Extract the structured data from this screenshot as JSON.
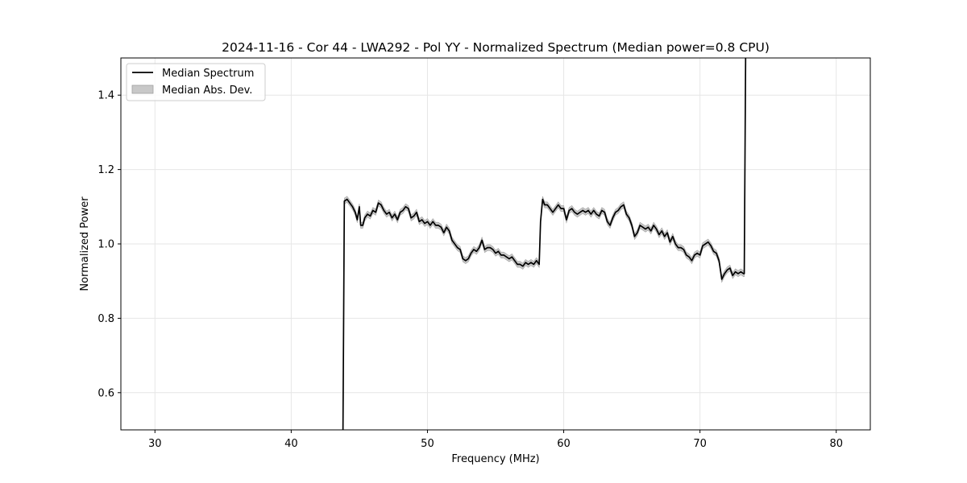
{
  "chart_data": {
    "type": "line",
    "title": "2024-11-16 - Cor 44 - LWA292 - Pol YY - Normalized Spectrum (Median power=0.8 CPU)",
    "xlabel": "Frequency (MHz)",
    "ylabel": "Normalized Power",
    "xlim": [
      27.5,
      82.5
    ],
    "ylim": [
      0.5,
      1.5
    ],
    "xticks": [
      30,
      40,
      50,
      60,
      70,
      80
    ],
    "yticks": [
      0.6,
      0.8,
      1.0,
      1.2,
      1.4
    ],
    "xtick_labels": [
      "30",
      "40",
      "50",
      "60",
      "70",
      "80"
    ],
    "ytick_labels": [
      "0.6",
      "0.8",
      "1.0",
      "1.2",
      "1.4"
    ],
    "grid": true,
    "legend_position": "top-left",
    "legend": [
      "Median Spectrum",
      "Median Abs. Dev."
    ],
    "colors": {
      "line": "#000000",
      "band": "#c8c8c8",
      "band_edge": "#a0a0a0",
      "grid": "#e6e6e6"
    },
    "series": [
      {
        "name": "Median Spectrum",
        "band_halfwidth": 0.008,
        "x": [
          43.8,
          43.9,
          44.1,
          44.3,
          44.5,
          44.7,
          44.85,
          45.0,
          45.1,
          45.25,
          45.4,
          45.6,
          45.8,
          46.0,
          46.2,
          46.4,
          46.6,
          46.8,
          47.0,
          47.2,
          47.4,
          47.6,
          47.8,
          48.0,
          48.2,
          48.4,
          48.6,
          48.8,
          49.0,
          49.2,
          49.4,
          49.6,
          49.8,
          50.0,
          50.2,
          50.4,
          50.6,
          50.8,
          51.0,
          51.2,
          51.4,
          51.6,
          51.8,
          52.0,
          52.2,
          52.4,
          52.6,
          52.8,
          53.0,
          53.2,
          53.4,
          53.6,
          53.8,
          54.0,
          54.2,
          54.4,
          54.6,
          54.8,
          55.0,
          55.2,
          55.4,
          55.6,
          55.8,
          56.0,
          56.2,
          56.4,
          56.6,
          56.8,
          57.0,
          57.2,
          57.4,
          57.6,
          57.8,
          58.0,
          58.2,
          58.3,
          58.45,
          58.6,
          58.8,
          59.0,
          59.2,
          59.4,
          59.6,
          59.8,
          60.0,
          60.2,
          60.4,
          60.6,
          60.8,
          61.0,
          61.2,
          61.4,
          61.6,
          61.8,
          62.0,
          62.2,
          62.4,
          62.6,
          62.8,
          63.0,
          63.2,
          63.4,
          63.6,
          63.8,
          64.0,
          64.2,
          64.4,
          64.6,
          64.8,
          65.0,
          65.2,
          65.4,
          65.6,
          65.8,
          66.0,
          66.2,
          66.4,
          66.6,
          66.8,
          67.0,
          67.2,
          67.4,
          67.6,
          67.8,
          68.0,
          68.2,
          68.4,
          68.6,
          68.8,
          69.0,
          69.2,
          69.4,
          69.6,
          69.8,
          70.0,
          70.2,
          70.4,
          70.6,
          70.8,
          71.0,
          71.2,
          71.4,
          71.6,
          71.8,
          72.0,
          72.2,
          72.4,
          72.6,
          72.8,
          73.0,
          73.2,
          73.25,
          73.35
        ],
        "y": [
          0.5,
          1.115,
          1.12,
          1.11,
          1.1,
          1.085,
          1.065,
          1.1,
          1.05,
          1.05,
          1.07,
          1.08,
          1.075,
          1.09,
          1.085,
          1.11,
          1.105,
          1.09,
          1.08,
          1.085,
          1.07,
          1.08,
          1.065,
          1.085,
          1.09,
          1.1,
          1.095,
          1.07,
          1.075,
          1.085,
          1.06,
          1.065,
          1.055,
          1.06,
          1.05,
          1.06,
          1.05,
          1.05,
          1.045,
          1.03,
          1.045,
          1.035,
          1.01,
          1.0,
          0.99,
          0.985,
          0.96,
          0.955,
          0.96,
          0.975,
          0.985,
          0.98,
          0.99,
          1.01,
          0.985,
          0.99,
          0.99,
          0.985,
          0.975,
          0.98,
          0.97,
          0.97,
          0.965,
          0.96,
          0.965,
          0.955,
          0.945,
          0.945,
          0.94,
          0.95,
          0.945,
          0.95,
          0.945,
          0.955,
          0.945,
          1.06,
          1.12,
          1.105,
          1.105,
          1.095,
          1.085,
          1.095,
          1.105,
          1.095,
          1.095,
          1.065,
          1.09,
          1.095,
          1.085,
          1.08,
          1.085,
          1.09,
          1.085,
          1.09,
          1.08,
          1.09,
          1.08,
          1.075,
          1.09,
          1.085,
          1.06,
          1.05,
          1.07,
          1.085,
          1.09,
          1.1,
          1.105,
          1.08,
          1.07,
          1.05,
          1.02,
          1.03,
          1.05,
          1.045,
          1.04,
          1.045,
          1.035,
          1.05,
          1.04,
          1.025,
          1.035,
          1.02,
          1.03,
          1.005,
          1.02,
          1.0,
          0.99,
          0.99,
          0.985,
          0.97,
          0.965,
          0.955,
          0.97,
          0.975,
          0.97,
          0.995,
          1.0,
          1.005,
          0.995,
          0.98,
          0.975,
          0.955,
          0.905,
          0.92,
          0.93,
          0.935,
          0.915,
          0.925,
          0.92,
          0.925,
          0.92,
          0.92,
          1.5
        ]
      }
    ]
  }
}
